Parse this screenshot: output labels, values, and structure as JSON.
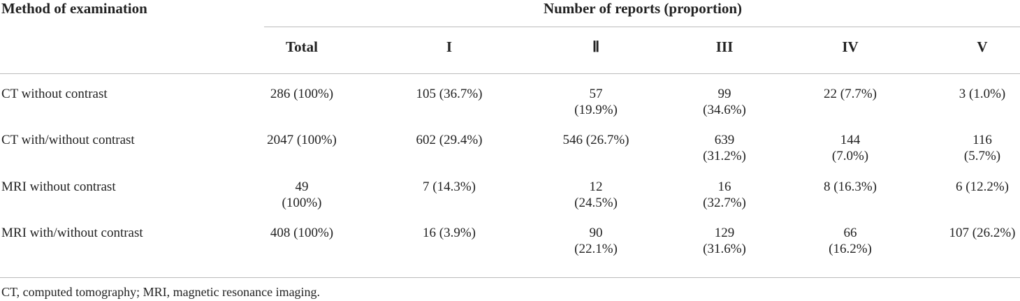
{
  "table": {
    "header": {
      "method": "Method of examination",
      "group": "Number of reports (proportion)"
    },
    "columns": [
      "Total",
      "I",
      "Ⅱ",
      "III",
      "IV",
      "V"
    ],
    "rows": [
      [
        "CT without contrast",
        "286 (100%)",
        "105 (36.7%)",
        "57 (19.9%)",
        "99 (34.6%)",
        "22 (7.7%)",
        "3 (1.0%)"
      ],
      [
        "CT with/without contrast",
        "2047 (100%)",
        "602 (29.4%)",
        "546 (26.7%)",
        "639 (31.2%)",
        "144 (7.0%)",
        "116 (5.7%)"
      ],
      [
        "MRI without contrast",
        "49 (100%)",
        "7 (14.3%)",
        "12 (24.5%)",
        "16 (32.7%)",
        "8 (16.3%)",
        "6 (12.2%)"
      ],
      [
        "MRI with/without contrast",
        "408 (100%)",
        "16 (3.9%)",
        "90 (22.1%)",
        "129 (31.6%)",
        "66 (16.2%)",
        "107 (26.2%)"
      ]
    ],
    "footnote": "CT, computed tomography; MRI, magnetic resonance imaging."
  }
}
